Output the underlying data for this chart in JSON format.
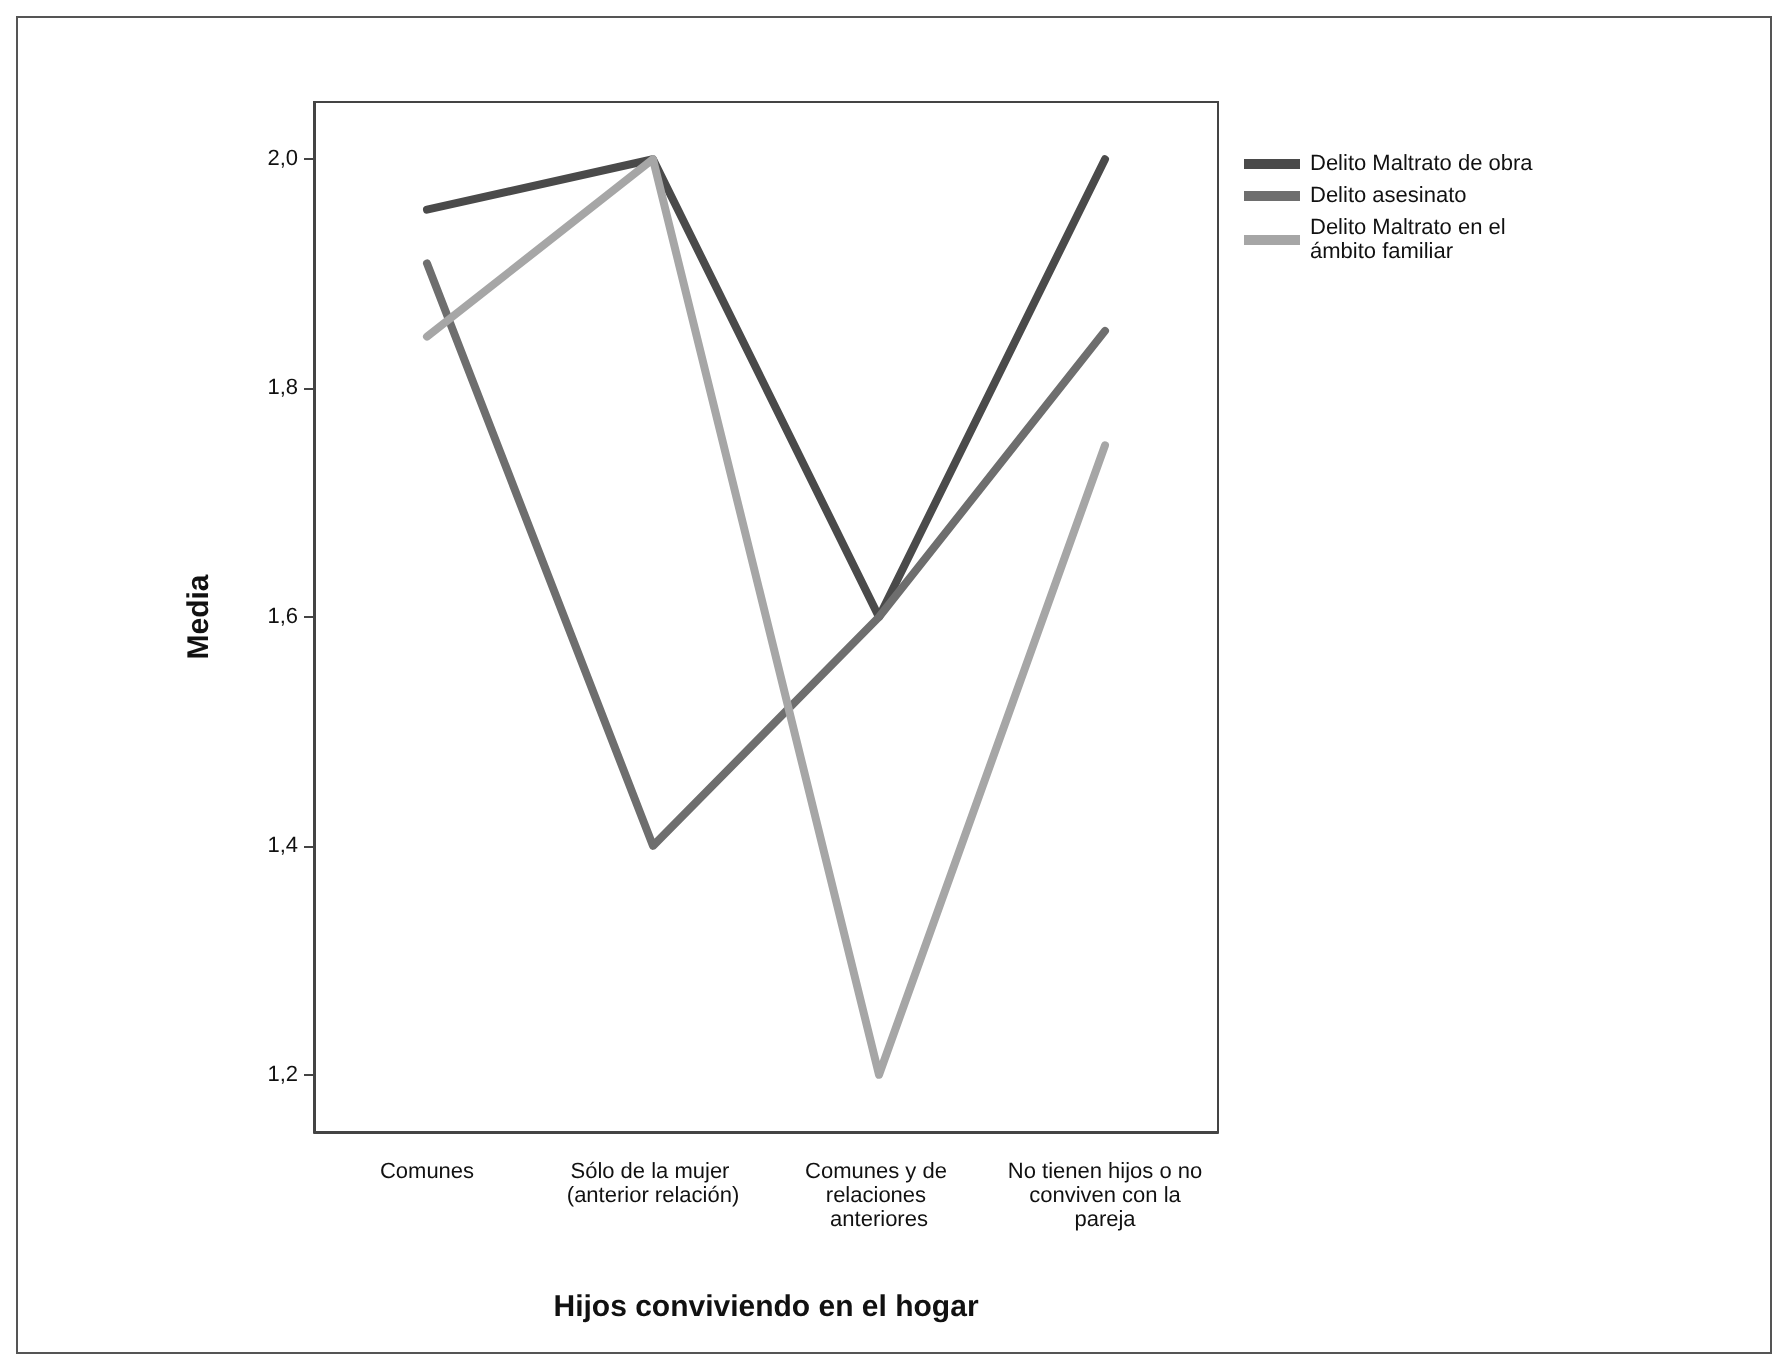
{
  "chart_data": {
    "type": "line",
    "xlabel": "Hijos conviviendo en el hogar",
    "ylabel": "Media",
    "categories": [
      "Comunes",
      "Sólo de la mujer (anterior relación)",
      "Comunes y de relaciones anteriores",
      "No tienen hijos o no conviven con la pareja"
    ],
    "series": [
      {
        "name": "Delito Maltrato de obra",
        "color": "#4a4a4a",
        "values": [
          1.956,
          2.0,
          1.6,
          2.0
        ]
      },
      {
        "name": "Delito asesinato",
        "color": "#6e6e6e",
        "values": [
          1.909,
          1.4,
          1.6,
          1.85
        ]
      },
      {
        "name": "Delito Maltrato en el ámbito familiar",
        "color": "#a6a6a6",
        "values": [
          1.845,
          2.0,
          1.2,
          1.75
        ]
      }
    ],
    "ylim": [
      1.15,
      2.05
    ],
    "yticks": [
      {
        "value": 1.2,
        "label": "1,2"
      },
      {
        "value": 1.4,
        "label": "1,4"
      },
      {
        "value": 1.6,
        "label": "1,6"
      },
      {
        "value": 1.8,
        "label": "1,8"
      },
      {
        "value": 2.0,
        "label": "2,0"
      }
    ],
    "grid": false,
    "legend": "top right",
    "marker": "none",
    "line_style": "solid"
  }
}
